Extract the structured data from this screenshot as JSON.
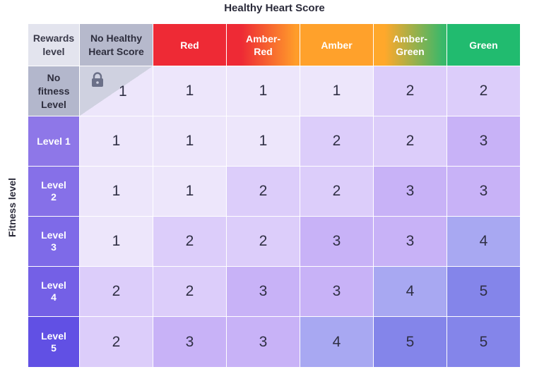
{
  "titles": {
    "top": "Healthy Heart Score",
    "side": "Fitness level"
  },
  "corner": {
    "line1": "Rewards",
    "line2": "level"
  },
  "columns": [
    {
      "line1": "No Healthy",
      "line2": "Heart Score"
    },
    {
      "line1": "Red",
      "line2": ""
    },
    {
      "line1": "Amber-",
      "line2": "Red"
    },
    {
      "line1": "Amber",
      "line2": ""
    },
    {
      "line1": "Amber-",
      "line2": "Green"
    },
    {
      "line1": "Green",
      "line2": ""
    }
  ],
  "rows": [
    {
      "label_lines": [
        "No",
        "fitness",
        "Level"
      ],
      "values": [
        "1",
        "1",
        "1",
        "1",
        "2",
        "2"
      ]
    },
    {
      "label_lines": [
        "Level 1"
      ],
      "values": [
        "1",
        "1",
        "1",
        "2",
        "2",
        "3"
      ]
    },
    {
      "label_lines": [
        "Level",
        "2"
      ],
      "values": [
        "1",
        "1",
        "2",
        "2",
        "3",
        "3"
      ]
    },
    {
      "label_lines": [
        "Level",
        "3"
      ],
      "values": [
        "1",
        "2",
        "2",
        "3",
        "3",
        "4"
      ]
    },
    {
      "label_lines": [
        "Level",
        "4"
      ],
      "values": [
        "2",
        "2",
        "3",
        "3",
        "4",
        "5"
      ]
    },
    {
      "label_lines": [
        "Level",
        "5"
      ],
      "values": [
        "2",
        "3",
        "3",
        "4",
        "5",
        "5"
      ]
    }
  ],
  "colors": {
    "column_headers": [
      "#b6b9cc",
      "#ee2a35",
      "linear-gradient(to right, #ee2a35 20%, #ff9d2a 95%)",
      "#ffa12b",
      "linear-gradient(to right, #ffa82b 15%, #39b86a 95%)",
      "#21bb6f"
    ],
    "row_headers": [
      "#b3b7cc",
      "#8e77e8",
      "#8670e8",
      "#7e6ae8",
      "#7460e6",
      "#6150e4"
    ],
    "value_scale": {
      "1": "#ede6fb",
      "2": "#dccdfa",
      "3": "#c8b2f7",
      "4": "#a8a8f2",
      "5": "#8485ea"
    },
    "lock": "#6b7088"
  },
  "icons": {
    "locked_cell": "lock-icon"
  }
}
